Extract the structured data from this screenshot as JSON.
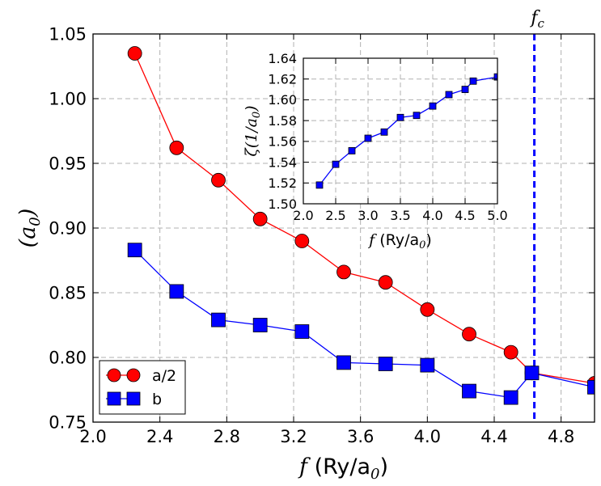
{
  "chart_data": [
    {
      "type": "line",
      "name": "main",
      "x": [
        2.25,
        2.5,
        2.75,
        3.0,
        3.25,
        3.5,
        3.75,
        4.0,
        4.25,
        4.5,
        4.625,
        5.0
      ],
      "series": [
        {
          "name": "a/2",
          "marker": "circle",
          "color": "#ff0000",
          "values": [
            1.035,
            0.962,
            0.937,
            0.907,
            0.89,
            0.866,
            0.858,
            0.837,
            0.818,
            0.804,
            0.788,
            0.78
          ]
        },
        {
          "name": "b",
          "marker": "square",
          "color": "#0000ff",
          "values": [
            0.883,
            0.851,
            0.829,
            0.825,
            0.82,
            0.796,
            0.795,
            0.794,
            0.774,
            0.769,
            0.788,
            0.777
          ]
        }
      ],
      "xlim": [
        2.0,
        5.0
      ],
      "ylim": [
        0.75,
        1.05
      ],
      "xticks": [
        "2.0",
        "2.4",
        "2.8",
        "3.2",
        "3.6",
        "4.0",
        "4.4",
        "4.8"
      ],
      "xtick_values": [
        2.0,
        2.4,
        2.8,
        3.2,
        3.6,
        4.0,
        4.4,
        4.8
      ],
      "yticks": [
        "0.75",
        "0.80",
        "0.85",
        "0.90",
        "0.95",
        "1.00",
        "1.05"
      ],
      "ytick_values": [
        0.75,
        0.8,
        0.85,
        0.9,
        0.95,
        1.0,
        1.05
      ],
      "xlabel_symbol": "f",
      "xlabel_unit": " (Ry/a",
      "xlabel_sub": "0",
      "xlabel_close": ")",
      "ylabel_open": "(a",
      "ylabel_sub": "0",
      "ylabel_close": ")",
      "vline": {
        "x": 4.64,
        "label": "f",
        "label_sub": "c",
        "color": "#0000ff"
      },
      "grid": true,
      "legend": "bottom-left"
    },
    {
      "type": "line",
      "name": "inset",
      "x": [
        2.25,
        2.5,
        2.75,
        3.0,
        3.25,
        3.5,
        3.75,
        4.0,
        4.25,
        4.5,
        4.625,
        5.0
      ],
      "series": [
        {
          "name": "zeta",
          "marker": "square",
          "color": "#0000ff",
          "values": [
            1.518,
            1.538,
            1.551,
            1.563,
            1.569,
            1.583,
            1.585,
            1.594,
            1.605,
            1.61,
            1.618,
            1.622
          ]
        }
      ],
      "xlim": [
        2.0,
        5.0
      ],
      "ylim": [
        1.5,
        1.64
      ],
      "xticks": [
        "2.0",
        "2.5",
        "3.0",
        "3.5",
        "4.0",
        "4.5",
        "5.0"
      ],
      "xtick_values": [
        2.0,
        2.5,
        3.0,
        3.5,
        4.0,
        4.5,
        5.0
      ],
      "yticks": [
        "1.50",
        "1.52",
        "1.54",
        "1.56",
        "1.58",
        "1.60",
        "1.62",
        "1.64"
      ],
      "ytick_values": [
        1.5,
        1.52,
        1.54,
        1.56,
        1.58,
        1.6,
        1.62,
        1.64
      ],
      "xlabel_symbol": "f",
      "xlabel_unit": " (Ry/a",
      "xlabel_sub": "0",
      "xlabel_close": ")",
      "ylabel_open": "ζ(1/a",
      "ylabel_sub": "0",
      "ylabel_close": ")",
      "grid": true
    }
  ]
}
